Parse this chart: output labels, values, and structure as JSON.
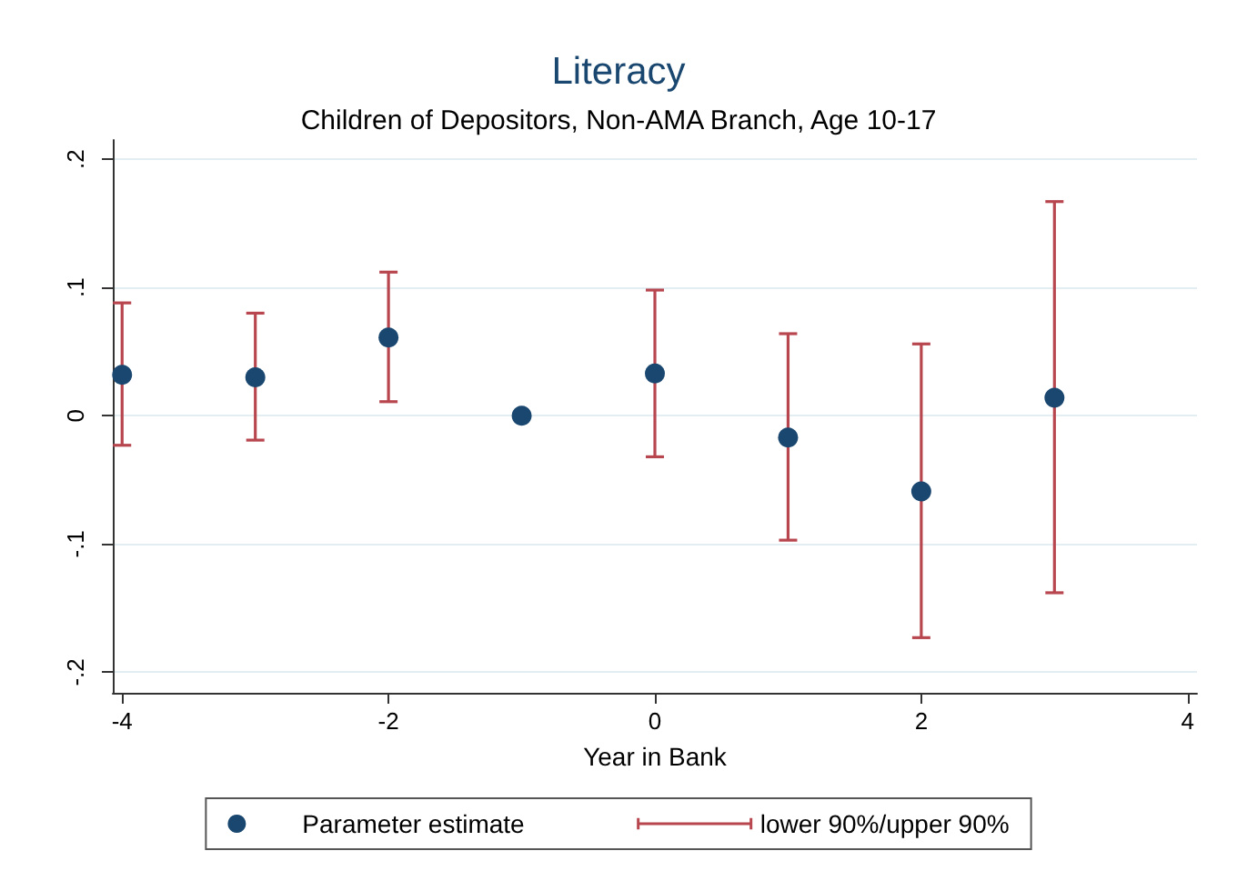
{
  "chart_data": {
    "type": "scatter",
    "title": "Literacy",
    "subtitle": "Children of Depositors, Non-AMA Branch, Age 10-17",
    "xlabel": "Year in Bank",
    "x": [
      -4,
      -3,
      -2,
      -1,
      0,
      1,
      2,
      3
    ],
    "series": [
      {
        "name": "Parameter estimate",
        "color": "#1a476f",
        "values": [
          0.032,
          0.03,
          0.061,
          0,
          0.033,
          -0.017,
          -0.059,
          0.014
        ],
        "errors": [
          [
            -0.023,
            0.088
          ],
          [
            -0.019,
            0.08
          ],
          [
            0.011,
            0.112
          ],
          null,
          [
            -0.032,
            0.098
          ],
          [
            -0.097,
            0.064
          ],
          [
            -0.173,
            0.056
          ],
          [
            -0.138,
            0.167
          ]
        ]
      }
    ],
    "annotations": [
      "lower 90%/upper 90%"
    ],
    "xlim": [
      -4.07,
      4.07
    ],
    "xticks": [
      -4,
      -2,
      0,
      2,
      4
    ],
    "ylim": [
      -0.216,
      0.215
    ],
    "yticks": [
      {
        "value": -0.2,
        "label": "-.2"
      },
      {
        "value": -0.1,
        "label": "-.1"
      },
      0,
      {
        "value": 0.1,
        "label": ".1"
      },
      {
        "value": 0.2,
        "label": ".2"
      }
    ],
    "grid": "y",
    "legend": "bottom",
    "marker": "circle"
  }
}
